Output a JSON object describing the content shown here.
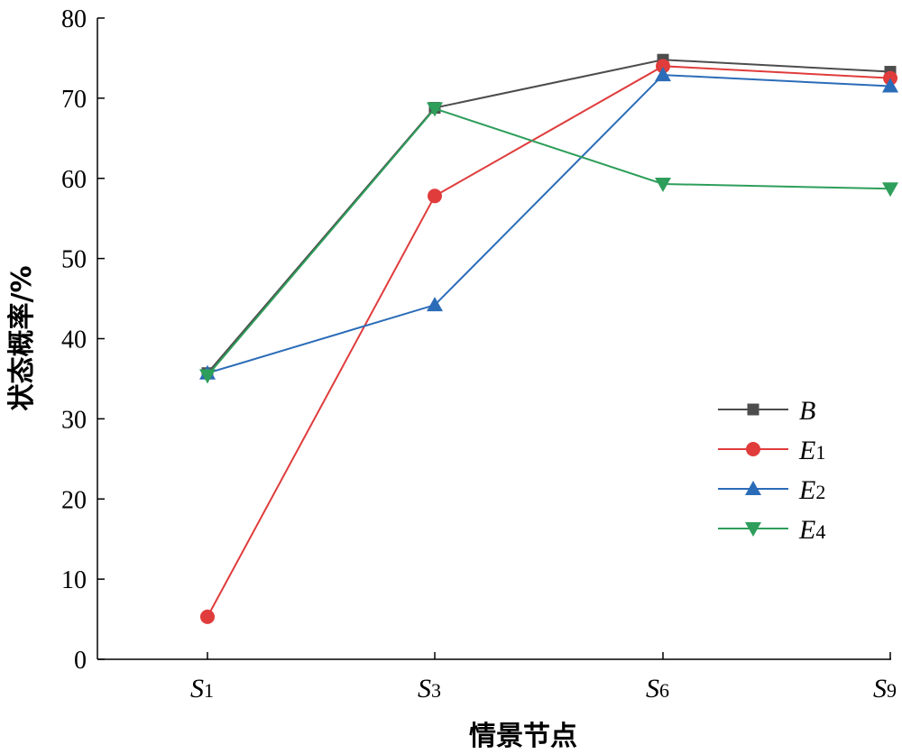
{
  "chart_data": {
    "type": "line",
    "xlabel": "情景节点",
    "ylabel": "状态概率/%",
    "categories": [
      {
        "base": "S",
        "sub": "1"
      },
      {
        "base": "S",
        "sub": "3"
      },
      {
        "base": "S",
        "sub": "6"
      },
      {
        "base": "S",
        "sub": "9"
      }
    ],
    "ylim": [
      0,
      80
    ],
    "yticks": [
      0,
      10,
      20,
      30,
      40,
      50,
      60,
      70,
      80
    ],
    "grid": false,
    "legend_position": "right",
    "series": [
      {
        "name": "B",
        "sub": "",
        "marker": "square",
        "color": "#4d4d4d",
        "values": [
          35.7,
          68.8,
          74.8,
          73.3
        ]
      },
      {
        "name": "E",
        "sub": "1",
        "marker": "circle",
        "color": "#e03c3c",
        "values": [
          5.3,
          57.8,
          74.0,
          72.5
        ]
      },
      {
        "name": "E",
        "sub": "2",
        "marker": "triangle-up",
        "color": "#2b6cb8",
        "values": [
          35.7,
          44.2,
          72.9,
          71.5
        ]
      },
      {
        "name": "E",
        "sub": "4",
        "marker": "triangle-down",
        "color": "#2e9e5b",
        "values": [
          35.4,
          68.7,
          59.3,
          58.7
        ]
      }
    ]
  }
}
